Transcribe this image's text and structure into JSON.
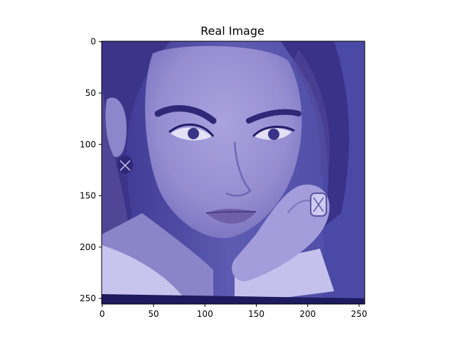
{
  "chart_data": {
    "type": "image",
    "title": "Real Image",
    "xlabel": "",
    "ylabel": "",
    "image": {
      "width": 256,
      "height": 256,
      "description_tint": "#6a6ab8"
    },
    "xlim": [
      -0.5,
      255.5
    ],
    "ylim": [
      255.5,
      -0.5
    ],
    "x_ticks": [
      0,
      50,
      100,
      150,
      200,
      250
    ],
    "y_ticks": [
      0,
      50,
      100,
      150,
      200,
      250
    ],
    "grid": false,
    "colors": {
      "tint": "#5d5db0",
      "skin": "#9e97d6",
      "hair": "#3b3485",
      "shadow": "#2a2470",
      "background": "#4f4fa8"
    }
  }
}
